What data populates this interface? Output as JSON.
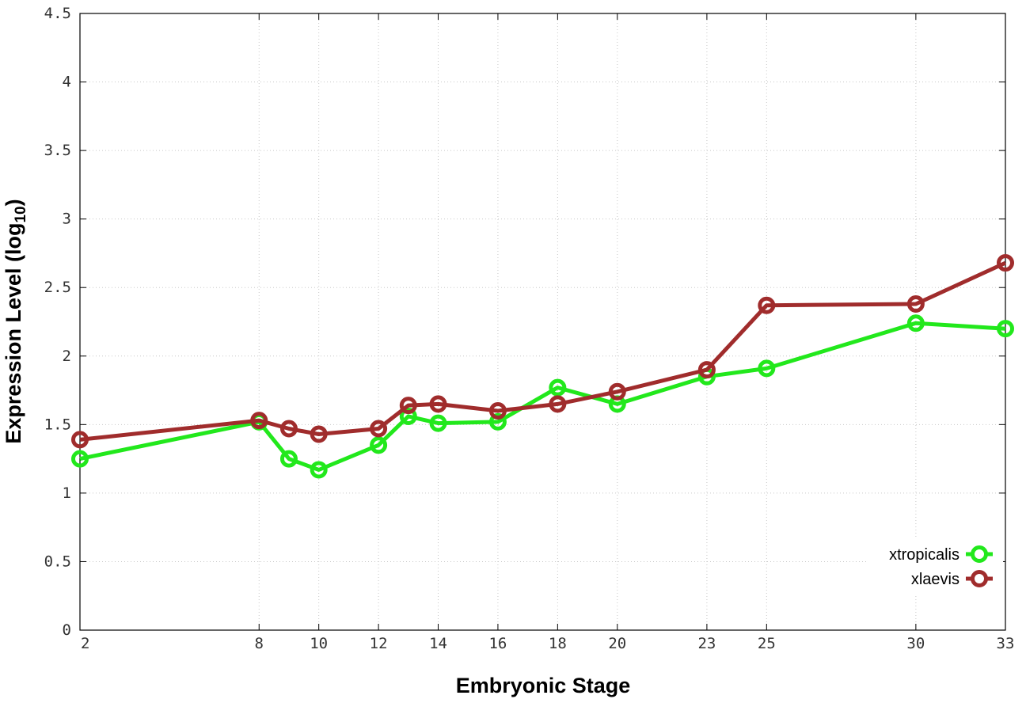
{
  "chart_data": {
    "type": "line",
    "title": "",
    "xlabel": "Embryonic Stage",
    "ylabel": {
      "main": "Expression Level (log",
      "subscript": "10",
      "close": ")"
    },
    "x_ticks": [
      2,
      8,
      10,
      12,
      14,
      16,
      18,
      20,
      23,
      25,
      30,
      33
    ],
    "y_ticks": [
      "0",
      "0.5",
      "1",
      "1.5",
      "2",
      "2.5",
      "3",
      "3.5",
      "4",
      "4.5"
    ],
    "xlim": [
      2,
      33
    ],
    "ylim": [
      0,
      4.5
    ],
    "grid": true,
    "legend_position": "bottom-right",
    "series": [
      {
        "name": "xtropicalis",
        "color": "#22e81c",
        "x": [
          2,
          8,
          9,
          10,
          12,
          13,
          14,
          16,
          18,
          20,
          23,
          25,
          30,
          33
        ],
        "y": [
          1.25,
          1.52,
          1.25,
          1.17,
          1.35,
          1.56,
          1.51,
          1.52,
          1.77,
          1.65,
          1.85,
          1.91,
          2.24,
          2.2
        ]
      },
      {
        "name": "xlaevis",
        "color": "#a02c2c",
        "x": [
          2,
          8,
          9,
          10,
          12,
          13,
          14,
          16,
          18,
          20,
          23,
          25,
          30,
          33
        ],
        "y": [
          1.39,
          1.53,
          1.47,
          1.43,
          1.47,
          1.64,
          1.65,
          1.6,
          1.65,
          1.74,
          1.9,
          2.37,
          2.38,
          2.68
        ]
      }
    ]
  }
}
